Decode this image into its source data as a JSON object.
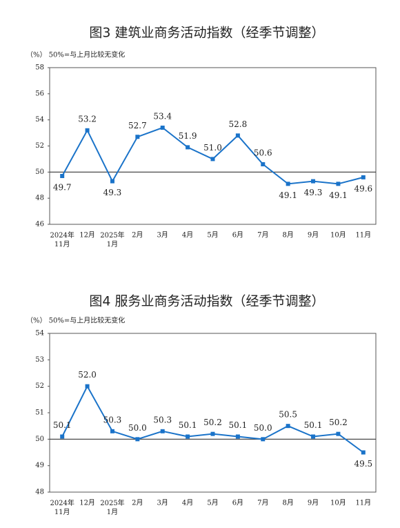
{
  "chart_data": [
    {
      "type": "line",
      "title": "图3 建筑业商务活动指数（经季节调整）",
      "subtitle": "（%） 50%=与上月比较无变化",
      "categories": [
        "2024年\n11月",
        "12月",
        "2025年\n1月",
        "2月",
        "3月",
        "4月",
        "5月",
        "6月",
        "7月",
        "8月",
        "9月",
        "10月",
        "11月"
      ],
      "series": [
        {
          "color": "#1a73c9",
          "values": [
            49.7,
            53.2,
            49.3,
            52.7,
            53.4,
            51.9,
            51.0,
            52.8,
            50.6,
            49.1,
            49.3,
            49.1,
            49.6
          ],
          "value_labels": [
            "49.7",
            "53.2",
            "49.3",
            "52.7",
            "53.4",
            "51.9",
            "51.0",
            "52.8",
            "50.6",
            "49.1",
            "49.3",
            "49.1",
            "49.6"
          ]
        }
      ],
      "ylim": [
        46,
        58
      ],
      "yticks": [
        46,
        48,
        50,
        52,
        54,
        56,
        58
      ],
      "reference_line": 50
    },
    {
      "type": "line",
      "title": "图4 服务业商务活动指数（经季节调整）",
      "subtitle": "（%） 50%=与上月比较无变化",
      "categories": [
        "2024年\n11月",
        "12月",
        "2025年\n1月",
        "2月",
        "3月",
        "4月",
        "5月",
        "6月",
        "7月",
        "8月",
        "9月",
        "10月",
        "11月"
      ],
      "series": [
        {
          "color": "#1a73c9",
          "values": [
            50.1,
            52.0,
            50.3,
            50.0,
            50.3,
            50.1,
            50.2,
            50.1,
            50.0,
            50.5,
            50.1,
            50.2,
            49.5
          ],
          "value_labels": [
            "50.1",
            "52.0",
            "50.3",
            "50.0",
            "50.3",
            "50.1",
            "50.2",
            "50.1",
            "50.0",
            "50.5",
            "50.1",
            "50.2",
            "49.5"
          ]
        }
      ],
      "ylim": [
        48,
        54
      ],
      "yticks": [
        48,
        49,
        50,
        51,
        52,
        53,
        54
      ],
      "reference_line": 50
    }
  ]
}
